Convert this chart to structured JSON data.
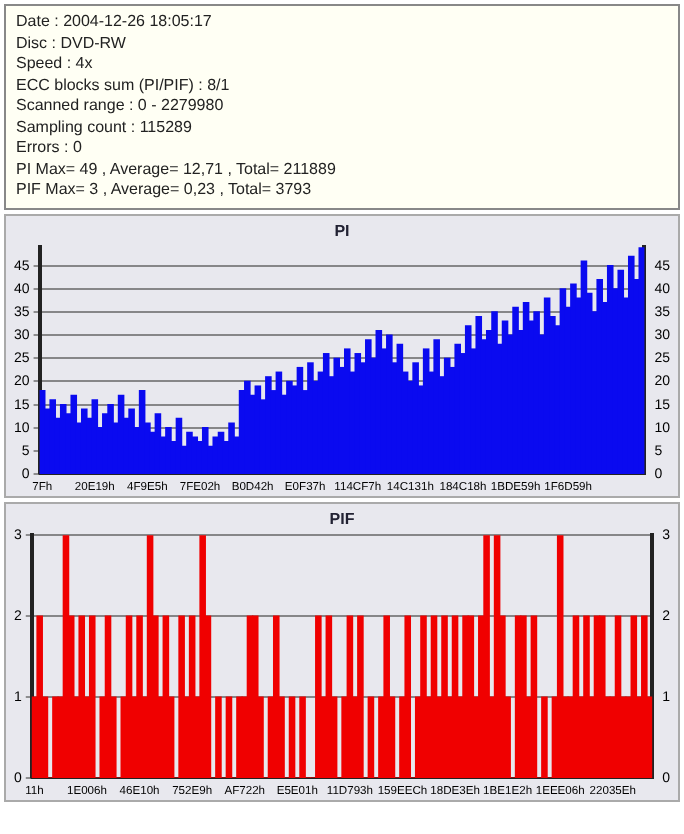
{
  "chart_data": [
    {
      "type": "other",
      "annotations": [
        "Date : 2004-12-26 18:05:17",
        "Disc : DVD-RW",
        "Speed : 4x",
        "ECC blocks sum (PI/PIF) : 8/1",
        "Scanned range : 0 - 2279980",
        "Sampling count : 115289",
        "Errors : 0",
        "PI Max= 49 , Average= 12,71 , Total= 211889",
        "PIF Max= 3 , Average= 0,23 , Total= 3793"
      ]
    },
    {
      "type": "bar",
      "title": "PI",
      "grid": "y",
      "categories": [
        "7Fh",
        null,
        null,
        null,
        null,
        null,
        null,
        null,
        null,
        null,
        "20E19h",
        null,
        null,
        null,
        null,
        null,
        null,
        null,
        null,
        null,
        "4F9E5h",
        null,
        null,
        null,
        null,
        null,
        null,
        null,
        null,
        null,
        "7FE02h",
        null,
        null,
        null,
        null,
        null,
        null,
        null,
        null,
        null,
        "B0D42h",
        null,
        null,
        null,
        null,
        null,
        null,
        null,
        null,
        null,
        "E0F37h",
        null,
        null,
        null,
        null,
        null,
        null,
        null,
        null,
        null,
        "114CF7h",
        null,
        null,
        null,
        null,
        null,
        null,
        null,
        null,
        null,
        "14C131h",
        null,
        null,
        null,
        null,
        null,
        null,
        null,
        null,
        null,
        "184C18h",
        null,
        null,
        null,
        null,
        null,
        null,
        null,
        null,
        null,
        "1BDE59h",
        null,
        null,
        null,
        null,
        null,
        null,
        null,
        null,
        null,
        "1F6D59h",
        null,
        null,
        null,
        null,
        null,
        null,
        null,
        null,
        null,
        null,
        null,
        null,
        null,
        null
      ],
      "series": [
        {
          "color": "#0a0af0",
          "values": [
            18,
            14,
            16,
            12,
            15,
            13,
            17,
            11,
            14,
            12,
            16,
            10,
            13,
            15,
            11,
            17,
            12,
            14,
            10,
            18,
            11,
            9,
            13,
            8,
            10,
            7,
            12,
            6,
            9,
            8,
            7,
            10,
            6,
            8,
            9,
            7,
            11,
            8,
            18,
            20,
            17,
            19,
            16,
            21,
            18,
            22,
            17,
            20,
            19,
            23,
            18,
            24,
            20,
            22,
            26,
            21,
            25,
            23,
            27,
            22,
            26,
            24,
            29,
            25,
            31,
            27,
            30,
            24,
            28,
            22,
            20,
            24,
            19,
            27,
            22,
            29,
            21,
            25,
            23,
            28,
            26,
            32,
            27,
            34,
            29,
            31,
            35,
            28,
            33,
            30,
            36,
            31,
            37,
            33,
            35,
            30,
            38,
            34,
            32,
            40,
            36,
            41,
            38,
            46,
            39,
            35,
            42,
            37,
            45,
            40,
            44,
            38,
            47,
            42,
            49
          ]
        }
      ],
      "ylim": [
        0,
        49
      ],
      "yticks": [
        0,
        5,
        10,
        15,
        20,
        25,
        30,
        35,
        40,
        45
      ],
      "y2lim": [
        0,
        49
      ],
      "y2ticks": [
        0,
        5,
        10,
        15,
        20,
        25,
        30,
        35,
        40,
        45
      ]
    },
    {
      "type": "bar",
      "title": "PIF",
      "grid": "y",
      "categories": [
        "11h",
        null,
        null,
        null,
        null,
        null,
        null,
        null,
        null,
        null,
        "1E006h",
        null,
        null,
        null,
        null,
        null,
        null,
        null,
        null,
        null,
        "46E10h",
        null,
        null,
        null,
        null,
        null,
        null,
        null,
        null,
        null,
        "752E9h",
        null,
        null,
        null,
        null,
        null,
        null,
        null,
        null,
        null,
        "AF722h",
        null,
        null,
        null,
        null,
        null,
        null,
        null,
        null,
        null,
        "E5E01h",
        null,
        null,
        null,
        null,
        null,
        null,
        null,
        null,
        null,
        "11D793h",
        null,
        null,
        null,
        null,
        null,
        null,
        null,
        null,
        null,
        "159EECh",
        null,
        null,
        null,
        null,
        null,
        null,
        null,
        null,
        null,
        "18DE3Eh",
        null,
        null,
        null,
        null,
        null,
        null,
        null,
        null,
        null,
        "1BE1E2h",
        null,
        null,
        null,
        null,
        null,
        null,
        null,
        null,
        null,
        "1EEE06h",
        null,
        null,
        null,
        null,
        null,
        null,
        null,
        null,
        null,
        "22035Eh",
        null,
        null,
        null,
        null,
        null,
        null,
        null
      ],
      "series": [
        {
          "color": "#f00000",
          "values": [
            1,
            2,
            1,
            0,
            1,
            1,
            3,
            2,
            1,
            2,
            1,
            2,
            0,
            1,
            2,
            1,
            0,
            1,
            2,
            1,
            2,
            1,
            3,
            2,
            1,
            2,
            1,
            0,
            2,
            1,
            2,
            1,
            3,
            2,
            0,
            1,
            0,
            1,
            0,
            1,
            1,
            2,
            2,
            1,
            0,
            1,
            2,
            1,
            0,
            1,
            0,
            1,
            0,
            0,
            2,
            1,
            2,
            1,
            0,
            1,
            2,
            1,
            2,
            0,
            1,
            0,
            1,
            2,
            1,
            0,
            1,
            2,
            0,
            1,
            2,
            1,
            2,
            1,
            2,
            1,
            2,
            1,
            2,
            2,
            1,
            2,
            3,
            1,
            3,
            2,
            1,
            0,
            2,
            2,
            1,
            2,
            0,
            1,
            0,
            1,
            3,
            1,
            1,
            2,
            1,
            2,
            1,
            2,
            2,
            1,
            1,
            2,
            1,
            1,
            2,
            1,
            2,
            1
          ]
        }
      ],
      "ylim": [
        0,
        3
      ],
      "yticks": [
        0,
        1,
        2,
        3
      ],
      "y2lim": [
        0,
        3
      ],
      "y2ticks": [
        0,
        1,
        2,
        3
      ]
    }
  ]
}
